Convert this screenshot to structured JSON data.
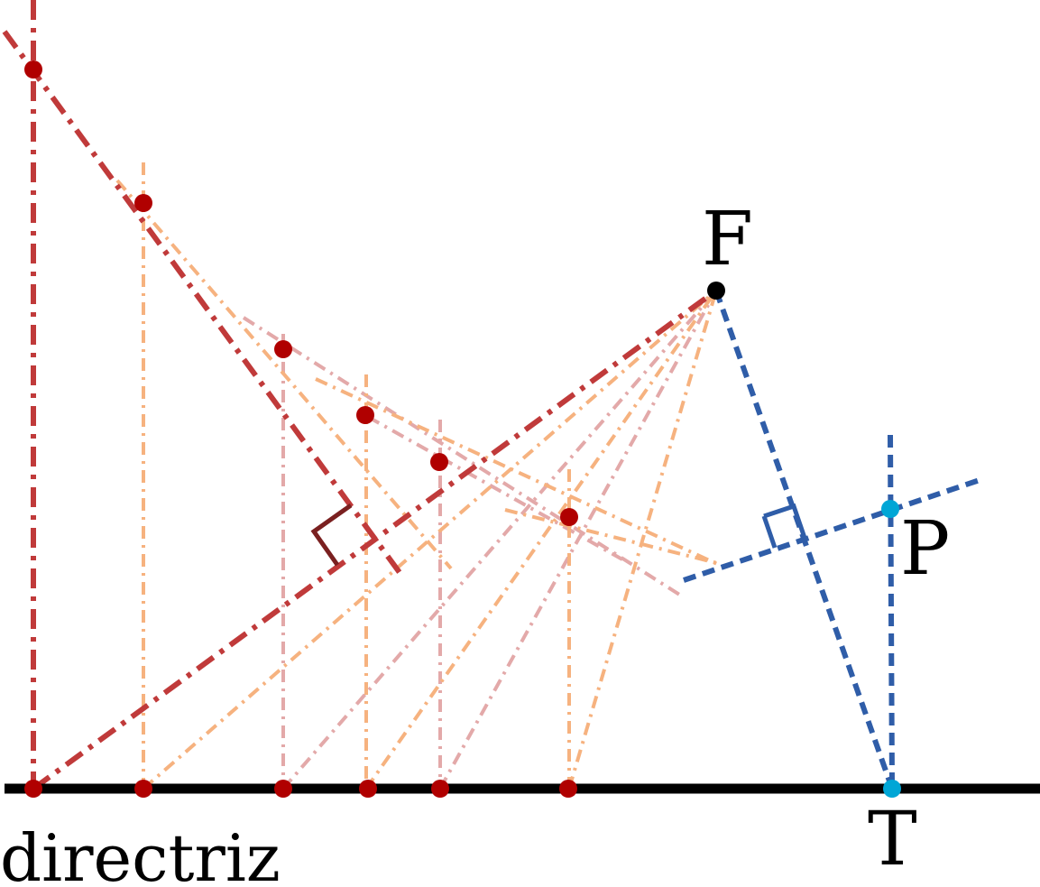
{
  "labels": {
    "focus": "F",
    "directrix": "directriz",
    "point_p": "P",
    "point_t": "T"
  },
  "colors": {
    "background": "#ffffff",
    "directrix": "#000000",
    "main_construction": "#c03a3a",
    "orange_construction": "#f6b27f",
    "pink_construction": "#e3a9a9",
    "blue_construction": "#2f5da8",
    "red_point": "#b00000",
    "cyan_point": "#00a6d6",
    "focus_point": "#000000",
    "right_angle_dark": "#7a2020"
  }
}
